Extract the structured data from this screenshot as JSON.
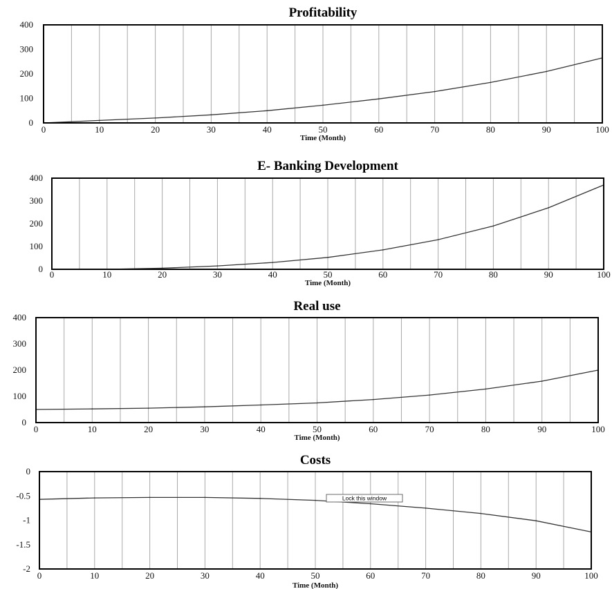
{
  "chart_data": [
    {
      "type": "line",
      "title": "Profitability",
      "xlabel": "Time (Month)",
      "ylabel": "",
      "xlim": [
        0,
        100
      ],
      "ylim": [
        0,
        400
      ],
      "x_ticks": [
        0,
        10,
        20,
        30,
        40,
        50,
        60,
        70,
        80,
        90,
        100
      ],
      "y_ticks": [
        400,
        300,
        200,
        100,
        0
      ],
      "grid": "vertical lines every 5 months",
      "x": [
        0,
        10,
        20,
        30,
        40,
        50,
        60,
        70,
        80,
        90,
        100
      ],
      "series": [
        {
          "values": [
            0,
            10,
            20,
            33,
            50,
            72,
            98,
            128,
            165,
            210,
            265
          ]
        }
      ]
    },
    {
      "type": "line",
      "title": "E- Banking Development",
      "xlabel": "Time (Month)",
      "ylabel": "",
      "xlim": [
        0,
        100
      ],
      "ylim": [
        0,
        400
      ],
      "x_ticks": [
        0,
        10,
        20,
        30,
        40,
        50,
        60,
        70,
        80,
        90,
        100
      ],
      "y_ticks": [
        400,
        300,
        200,
        100,
        0
      ],
      "grid": "vertical lines every 5 months",
      "x": [
        10,
        20,
        30,
        40,
        50,
        60,
        70,
        80,
        90,
        100
      ],
      "series": [
        {
          "values": [
            0,
            5,
            15,
            30,
            52,
            85,
            130,
            190,
            270,
            370
          ]
        }
      ]
    },
    {
      "type": "line",
      "title": "Real use",
      "xlabel": "Time (Month)",
      "ylabel": "",
      "xlim": [
        0,
        100
      ],
      "ylim": [
        0,
        400
      ],
      "x_ticks": [
        0,
        10,
        20,
        30,
        40,
        50,
        60,
        70,
        80,
        90,
        100
      ],
      "y_ticks": [
        400,
        300,
        200,
        100,
        0
      ],
      "grid": "vertical lines every 5 months",
      "x": [
        0,
        10,
        20,
        30,
        40,
        50,
        60,
        70,
        80,
        90,
        100
      ],
      "series": [
        {
          "values": [
            50,
            52,
            55,
            60,
            67,
            75,
            88,
            105,
            128,
            158,
            200
          ]
        }
      ]
    },
    {
      "type": "line",
      "title": "Costs",
      "xlabel": "Time (Month)",
      "ylabel": "",
      "xlim": [
        0,
        100
      ],
      "ylim": [
        -2,
        0
      ],
      "x_ticks": [
        0,
        10,
        20,
        30,
        40,
        50,
        60,
        70,
        80,
        90,
        100
      ],
      "y_ticks": [
        "0",
        "-0.5",
        "-1",
        "-1.5",
        "-2"
      ],
      "grid": "vertical lines every 5 months",
      "annotation": "Lock this window",
      "x": [
        0,
        10,
        20,
        30,
        40,
        50,
        60,
        70,
        80,
        90,
        100
      ],
      "series": [
        {
          "values": [
            -0.57,
            -0.54,
            -0.53,
            -0.53,
            -0.55,
            -0.59,
            -0.66,
            -0.75,
            -0.86,
            -1.01,
            -1.24
          ]
        }
      ]
    }
  ]
}
